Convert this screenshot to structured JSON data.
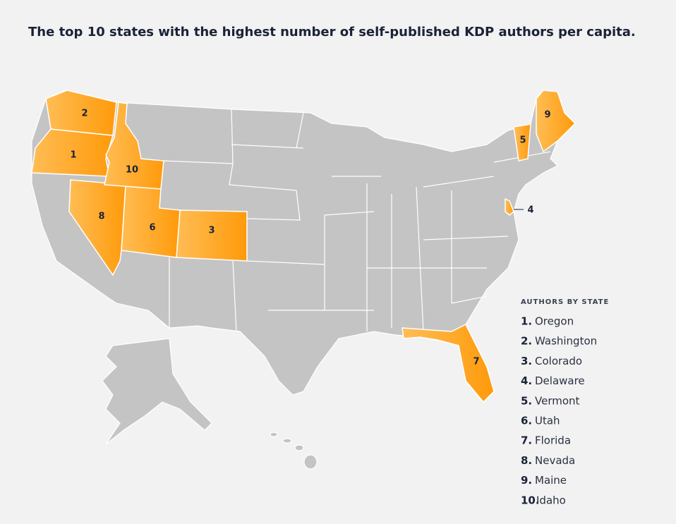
{
  "title": "The top 10 states with the highest number of self-published KDP authors per capita.",
  "legend": {
    "heading": "AUTHORS BY STATE",
    "items": [
      {
        "rank": "1.",
        "name": "Oregon"
      },
      {
        "rank": "2.",
        "name": "Washington"
      },
      {
        "rank": "3.",
        "name": "Colorado"
      },
      {
        "rank": "4.",
        "name": "Delaware"
      },
      {
        "rank": "5.",
        "name": "Vermont"
      },
      {
        "rank": "6.",
        "name": "Utah"
      },
      {
        "rank": "7.",
        "name": "Florida"
      },
      {
        "rank": "8.",
        "name": "Nevada"
      },
      {
        "rank": "9.",
        "name": "Maine"
      },
      {
        "rank": "10.",
        "name": "Idaho"
      }
    ]
  },
  "map": {
    "labels": [
      "1",
      "2",
      "3",
      "4",
      "5",
      "6",
      "7",
      "8",
      "9",
      "10"
    ]
  }
}
